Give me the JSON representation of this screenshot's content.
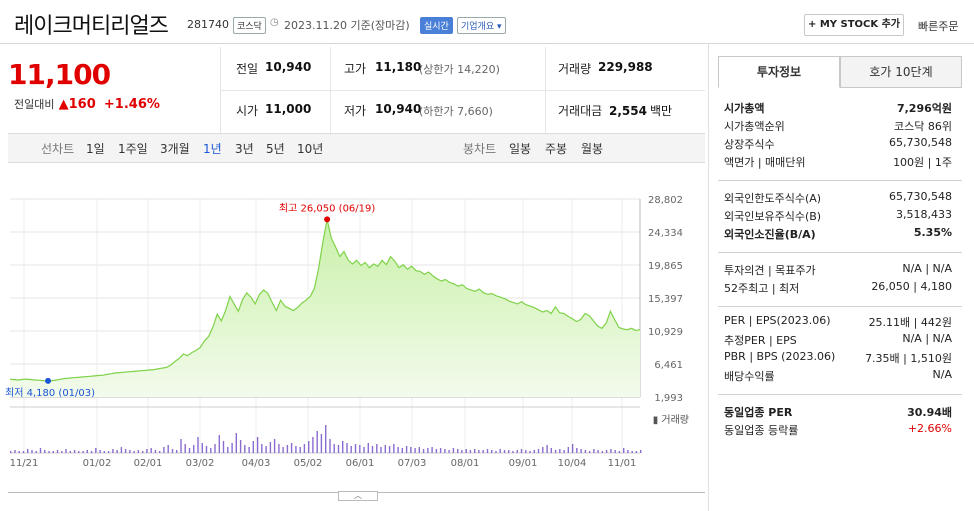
{
  "header": {
    "company": "레이크머티리얼즈",
    "code": "281740",
    "market": "코스닥",
    "date": "2023.11.20 기준(장마감)",
    "realtime": "실시간",
    "company_info": "기업개요",
    "mystock": "+ MY STOCK 추가",
    "fast_order": "빠른주문"
  },
  "price": {
    "current": "11,100",
    "prev_label": "전일대비",
    "change": "▲160",
    "change_pct": "+1.46%"
  },
  "quote": {
    "prev_close_label": "전일",
    "prev_close": "10,940",
    "high_label": "고가",
    "high": "11,180",
    "upper_limit": "(상한가 14,220)",
    "volume_label": "거래량",
    "volume": "229,988",
    "open_label": "시가",
    "open": "11,000",
    "low_label": "저가",
    "low": "10,940",
    "lower_limit": "(하한가 7,660)",
    "amount_label": "거래대금",
    "amount": "2,554",
    "amount_unit": "백만"
  },
  "periods": {
    "line_label": "선차트",
    "items": [
      "1일",
      "1주일",
      "3개월",
      "1년",
      "3년",
      "5년",
      "10년"
    ],
    "selected": "1년",
    "candle_label": "봉차트",
    "candle_items": [
      "일봉",
      "주봉",
      "월봉"
    ]
  },
  "chart_data": {
    "type": "area",
    "x_ticks": [
      "11/21",
      "01/02",
      "02/01",
      "03/02",
      "04/03",
      "05/02",
      "06/01",
      "07/03",
      "08/01",
      "09/01",
      "10/04",
      "11/01"
    ],
    "y_ticks": [
      "28,802",
      "24,334",
      "19,865",
      "15,397",
      "10,929",
      "6,461",
      "1,993"
    ],
    "ylim": [
      1993,
      28802
    ],
    "high_annotation": "최고 26,050 (06/19)",
    "low_annotation": "최저 4,180 (01/03)",
    "volume_label": "거래량",
    "colors": {
      "line": "#7fd24a",
      "fill_top": "#c9f0a8",
      "fill_bottom": "#f3fbec",
      "high": "#e00000",
      "low": "#1a56d4",
      "volume": "#8a6bd0"
    },
    "series": [
      {
        "values": [
          4400,
          4350,
          4300,
          4380,
          4420,
          4350,
          4300,
          4250,
          4200,
          4180,
          4220,
          4300,
          4400,
          4500,
          4550,
          4600,
          4650,
          4700,
          4750,
          4800,
          4850,
          4900,
          4950,
          5050,
          5150,
          5250,
          5300,
          5350,
          5400,
          5450,
          5500,
          5550,
          5600,
          5650,
          5700,
          5800,
          5900,
          6000,
          6300,
          6800,
          7200,
          7800,
          7600,
          8000,
          8300,
          8700,
          9600,
          10200,
          11500,
          13200,
          12300,
          13700,
          15600,
          14600,
          13600,
          15200,
          16100,
          15500,
          14600,
          15900,
          16500,
          16000,
          14800,
          13700,
          15100,
          14300,
          14000,
          13700,
          14100,
          14700,
          15100,
          15600,
          16700,
          19500,
          23000,
          26050,
          23500,
          22300,
          21000,
          21700,
          20500,
          20000,
          20500,
          19800,
          20200,
          19500,
          20000,
          19700,
          20500,
          19900,
          21000,
          20400,
          19500,
          19900,
          19300,
          19700,
          19100,
          19000,
          18600,
          18900,
          18400,
          18000,
          17700,
          17900,
          17500,
          17300,
          17000,
          17200,
          16700,
          16500,
          16300,
          16600,
          16100,
          15900,
          16000,
          15700,
          15500,
          15300,
          15000,
          14800,
          14600,
          14900,
          14500,
          14300,
          14100,
          13800,
          13500,
          13700,
          13300,
          14200,
          13400,
          13300,
          12900,
          12600,
          12200,
          12500,
          13300,
          13000,
          12300,
          11600,
          11300,
          12000,
          13600,
          12500,
          11400,
          11200,
          11100,
          11300,
          11000,
          11100
        ]
      }
    ]
  },
  "right": {
    "tab_invest": "투자정보",
    "tab_quote": "호가 10단계",
    "g1": [
      {
        "k": "시가총액",
        "v": "7,296억원",
        "bold": true
      },
      {
        "k": "시가총액순위",
        "v": "코스닥 86위"
      },
      {
        "k": "상장주식수",
        "v": "65,730,548"
      },
      {
        "k": "액면가 | 매매단위",
        "v": "100원 | 1주"
      }
    ],
    "g2": [
      {
        "k": "외국인한도주식수(A)",
        "v": "65,730,548"
      },
      {
        "k": "외국인보유주식수(B)",
        "v": "3,518,433"
      },
      {
        "k": "외국인소진율(B/A)",
        "v": "5.35%",
        "bold": true
      }
    ],
    "g3": [
      {
        "k": "투자의견 | 목표주가",
        "v": "N/A | N/A"
      },
      {
        "k": "52주최고 | 최저",
        "v": "26,050 | 4,180"
      }
    ],
    "g4": [
      {
        "k": "PER | EPS(2023.06)",
        "v": "25.11배 | 442원"
      },
      {
        "k": "추정PER | EPS",
        "v": "N/A | N/A"
      },
      {
        "k": "PBR | BPS (2023.06)",
        "v": "7.35배 | 1,510원"
      },
      {
        "k": "배당수익률",
        "v": "N/A"
      }
    ],
    "g5": [
      {
        "k": "동일업종 PER",
        "v": "30.94배",
        "bold": true
      },
      {
        "k": "동일업종 등락률",
        "v": "+2.66%",
        "red": true
      }
    ]
  }
}
